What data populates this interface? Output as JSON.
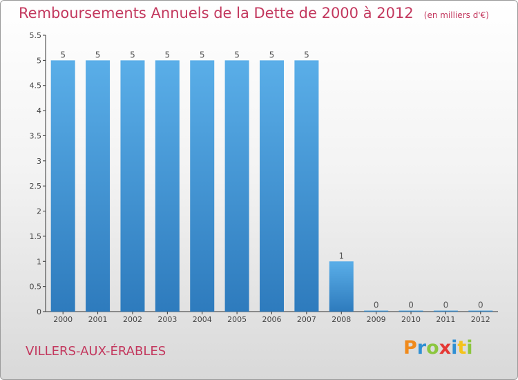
{
  "chart_data": {
    "type": "bar",
    "title": "Remboursements Annuels de la Dette de 2000 à 2012",
    "subtitle": "(en milliers d'€)",
    "categories": [
      "2000",
      "2001",
      "2002",
      "2003",
      "2004",
      "2005",
      "2006",
      "2007",
      "2008",
      "2009",
      "2010",
      "2011",
      "2012"
    ],
    "values": [
      5,
      5,
      5,
      5,
      5,
      5,
      5,
      5,
      1,
      0,
      0,
      0,
      0
    ],
    "value_labels": [
      "5",
      "5",
      "5",
      "5",
      "5",
      "5",
      "5",
      "5",
      "1",
      "0",
      "0",
      "0",
      "0"
    ],
    "xlabel": "",
    "ylabel": "",
    "ylim": [
      0,
      5.5
    ],
    "yticks": [
      0,
      0.5,
      1,
      1.5,
      2,
      2.5,
      3,
      3.5,
      4,
      4.5,
      5,
      5.5
    ],
    "ytick_labels": [
      "0",
      "0.5",
      "1",
      "1.5",
      "2",
      "2.5",
      "3",
      "3.5",
      "4",
      "4.5",
      "5",
      "5.5"
    ],
    "grid": false,
    "colors": {
      "bar_top": "#5aaee8",
      "bar_bottom": "#2e7bbd",
      "title": "#c3385e"
    }
  },
  "footer": {
    "commune": "VILLERS-AUX-ÉRABLES",
    "logo_letters": [
      "P",
      "r",
      "o",
      "x",
      "i",
      "t",
      "i"
    ],
    "logo_colors": [
      "#f08a1c",
      "#2f8fd3",
      "#8cc63f",
      "#e53935",
      "#2f8fd3",
      "#f5c31c",
      "#8cc63f"
    ]
  }
}
